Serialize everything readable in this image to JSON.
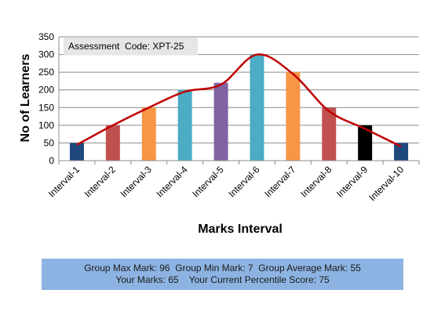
{
  "chart_data": {
    "type": "bar",
    "title": "",
    "xlabel": "Marks Interval",
    "ylabel": "No of Learners",
    "ylim": [
      0,
      350
    ],
    "yticks": [
      0,
      50,
      100,
      150,
      200,
      250,
      300,
      350
    ],
    "grid": true,
    "categories": [
      "Interval-1",
      "Interval-2",
      "Interval-3",
      "Interval-4",
      "Interval-5",
      "Interval-6",
      "Interval-7",
      "Interval-8",
      "Interval-9",
      "Interval-10"
    ],
    "series": [
      {
        "type": "bar",
        "values": [
          50,
          100,
          150,
          200,
          220,
          300,
          250,
          150,
          100,
          50
        ],
        "colors": [
          "#1f497d",
          "#c0504d",
          "#f79646",
          "#4bacc6",
          "#8064a2",
          "#4bacc6",
          "#f79646",
          "#c0504d",
          "#000000",
          "#1f497d"
        ]
      },
      {
        "type": "line",
        "smooth": true,
        "color": "#c00000",
        "values": [
          45,
          100,
          150,
          195,
          215,
          300,
          245,
          140,
          90,
          40
        ]
      }
    ]
  },
  "assessment": {
    "text": "Assessment  Code: XPT-25"
  },
  "summary": {
    "line1": "Group Max Mark: 96  Group Min Mark: 7  Group Average Mark: 55",
    "line2": "Your Marks: 65    Your Current Percentile Score: 75"
  }
}
